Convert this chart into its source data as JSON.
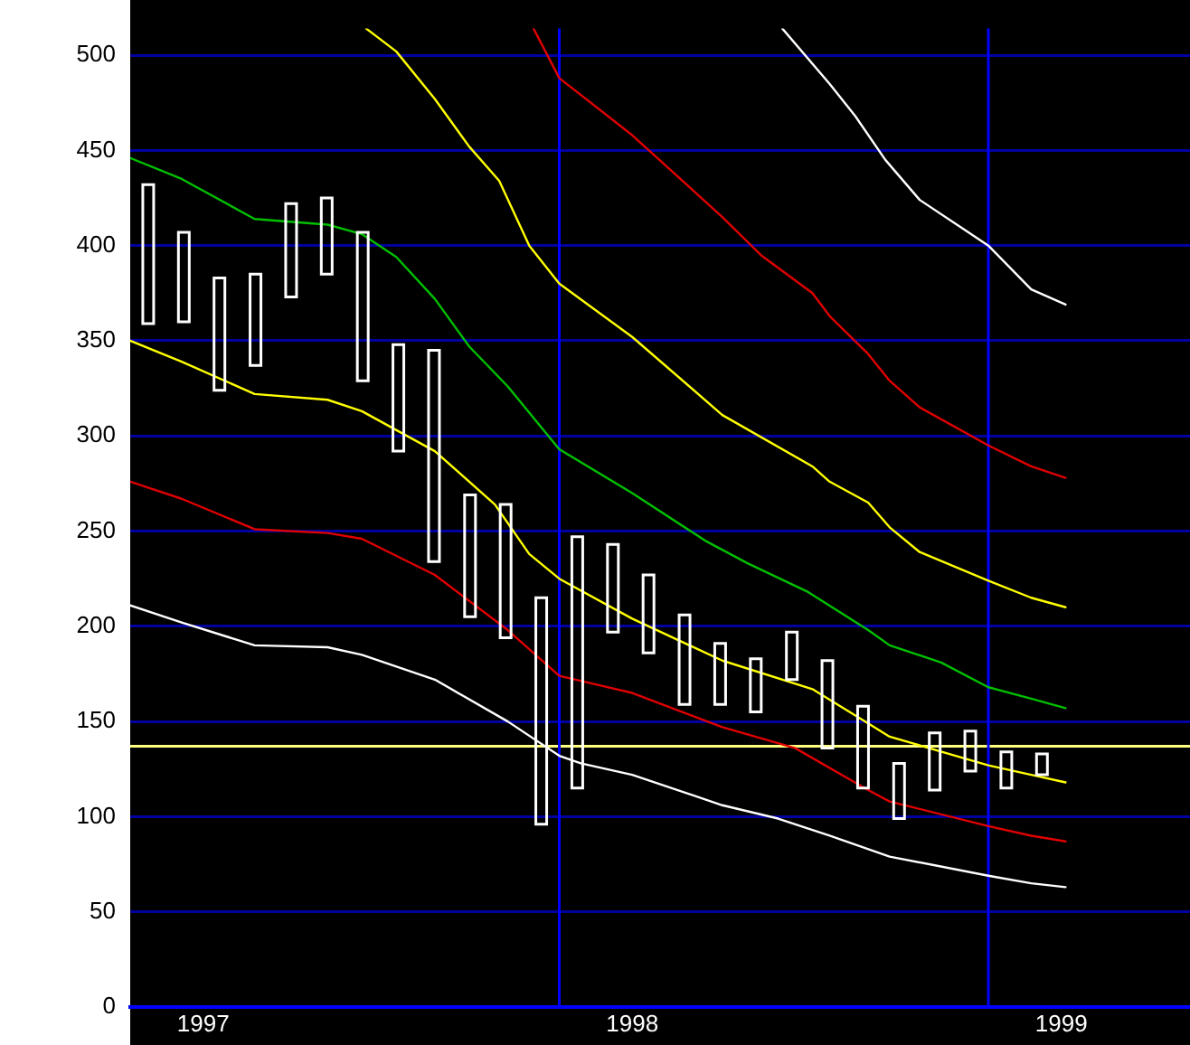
{
  "chart_data": {
    "type": "candlestick",
    "x": [
      1997.042,
      1997.125,
      1997.208,
      1997.292,
      1997.375,
      1997.458,
      1997.542,
      1997.625,
      1997.708,
      1997.792,
      1997.875,
      1997.958,
      1998.042,
      1998.125,
      1998.208,
      1998.292,
      1998.375,
      1998.458,
      1998.542,
      1998.625,
      1998.708,
      1998.792,
      1998.875,
      1998.958,
      1999.042,
      1999.125
    ],
    "ohlc": [
      [
        432,
        432,
        359,
        359
      ],
      [
        407,
        407,
        360,
        360
      ],
      [
        383,
        383,
        324,
        324
      ],
      [
        385,
        385,
        337,
        337
      ],
      [
        422,
        422,
        373,
        373
      ],
      [
        425,
        425,
        385,
        385
      ],
      [
        407,
        407,
        329,
        329
      ],
      [
        348,
        348,
        292,
        292
      ],
      [
        345,
        345,
        234,
        234
      ],
      [
        269,
        269,
        205,
        205
      ],
      [
        264,
        264,
        194,
        194
      ],
      [
        215,
        215,
        96,
        96
      ],
      [
        247,
        247,
        115,
        115
      ],
      [
        243,
        243,
        197,
        197
      ],
      [
        227,
        227,
        186,
        186
      ],
      [
        206,
        206,
        159,
        159
      ],
      [
        191,
        191,
        159,
        159
      ],
      [
        183,
        183,
        155,
        155
      ],
      [
        197,
        197,
        172,
        172
      ],
      [
        182,
        182,
        136,
        136
      ],
      [
        158,
        158,
        115,
        115
      ],
      [
        128,
        128,
        99,
        99
      ],
      [
        144,
        144,
        114,
        114
      ],
      [
        145,
        145,
        124,
        124
      ],
      [
        134,
        134,
        115,
        115
      ],
      [
        133,
        133,
        122,
        122
      ]
    ],
    "series": [
      {
        "type": "line",
        "color": "#ffffff",
        "x": [
          1997.0,
          1997.12,
          1997.29,
          1997.46,
          1997.54,
          1997.71,
          1997.88,
          1998.0,
          1998.05,
          1998.17,
          1998.38,
          1998.51,
          1998.63,
          1998.77,
          1999.0,
          1999.1,
          1999.18
        ],
        "values": [
          211,
          202,
          190,
          189,
          185,
          172,
          150,
          132,
          128,
          122,
          106,
          99,
          90,
          79,
          69,
          65,
          63
        ]
      },
      {
        "type": "line",
        "color": "#e00000",
        "x": [
          1997.0,
          1997.12,
          1997.29,
          1997.46,
          1997.54,
          1997.71,
          1997.88,
          1998.0,
          1998.17,
          1998.38,
          1998.55,
          1998.72,
          1998.77,
          1999.0,
          1999.1,
          1999.18
        ],
        "values": [
          276,
          267,
          251,
          249,
          246,
          227,
          198,
          174,
          165,
          147,
          136,
          114,
          108,
          95,
          90,
          87
        ]
      },
      {
        "type": "line",
        "color": "#ffff00",
        "x": [
          1997.0,
          1997.12,
          1997.29,
          1997.46,
          1997.54,
          1997.71,
          1997.85,
          1997.93,
          1998.0,
          1998.17,
          1998.38,
          1998.59,
          1998.72,
          1998.77,
          1999.0,
          1999.1,
          1999.18
        ],
        "values": [
          350,
          339,
          322,
          319,
          313,
          292,
          264,
          238,
          225,
          204,
          182,
          167,
          149,
          142,
          127,
          122,
          118
        ]
      },
      {
        "type": "line",
        "color": "#00c000",
        "x": [
          1997.0,
          1997.12,
          1997.29,
          1997.46,
          1997.54,
          1997.62,
          1997.71,
          1997.79,
          1997.88,
          1998.0,
          1998.17,
          1998.34,
          1998.44,
          1998.58,
          1998.72,
          1998.77,
          1998.89,
          1999.0,
          1999.1,
          1999.18
        ],
        "values": [
          446,
          435,
          414,
          411,
          406,
          394,
          372,
          347,
          326,
          293,
          270,
          245,
          233,
          218,
          198,
          190,
          181,
          168,
          162,
          157
        ]
      },
      {
        "type": "line",
        "color": "#ffff00",
        "x": [
          1997.55,
          1997.62,
          1997.71,
          1997.79,
          1997.86,
          1997.93,
          1998.0,
          1998.17,
          1998.38,
          1998.59,
          1998.63,
          1998.72,
          1998.77,
          1998.84,
          1999.0,
          1999.1,
          1999.18
        ],
        "values": [
          514,
          502,
          477,
          452,
          434,
          400,
          380,
          352,
          311,
          284,
          276,
          265,
          252,
          239,
          224,
          215,
          210
        ]
      },
      {
        "type": "line",
        "color": "#e00000",
        "x": [
          1997.94,
          1998.0,
          1998.17,
          1998.38,
          1998.47,
          1998.59,
          1998.63,
          1998.72,
          1998.77,
          1998.84,
          1999.0,
          1999.1,
          1999.18
        ],
        "values": [
          514,
          488,
          458,
          415,
          395,
          375,
          363,
          343,
          329,
          315,
          295,
          284,
          278
        ]
      },
      {
        "type": "line",
        "color": "#ffffff",
        "x": [
          1998.52,
          1998.63,
          1998.69,
          1998.76,
          1998.84,
          1999.0,
          1999.1,
          1999.18
        ],
        "values": [
          514,
          485,
          468,
          445,
          424,
          400,
          377,
          369
        ]
      }
    ],
    "xlim": [
      1997,
      1999.47
    ],
    "xticks": [
      {
        "value": 1997.17,
        "label": "1997"
      },
      {
        "value": 1998.17,
        "label": "1998"
      },
      {
        "value": 1999.17,
        "label": "1999"
      }
    ],
    "ylim": [
      0,
      514
    ],
    "yticks": [
      0,
      50,
      100,
      150,
      200,
      250,
      300,
      350,
      400,
      450,
      500
    ],
    "grid": "y",
    "marker": "none",
    "line_style": "solid",
    "ref_lines": [
      {
        "axis": "y",
        "value": 137,
        "color": "#ffff80"
      },
      {
        "axis": "x",
        "value": 1998,
        "color": "#0000ff"
      },
      {
        "axis": "x",
        "value": 1999,
        "color": "#0000ff"
      }
    ]
  }
}
